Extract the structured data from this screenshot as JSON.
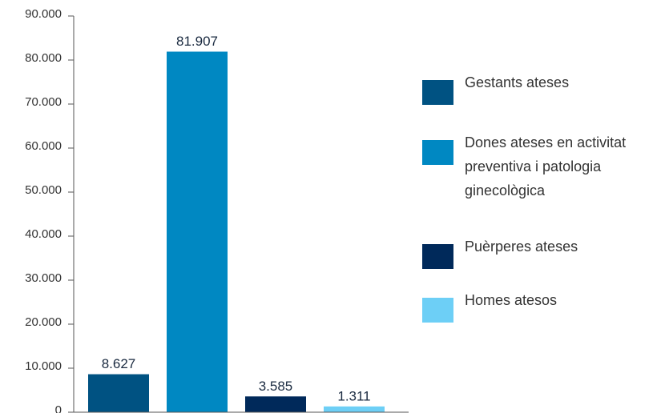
{
  "chart_data": {
    "type": "bar",
    "categories": [
      "Gestants ateses",
      "Dones ateses en activitat preventiva i patologia ginecològica",
      "Puèrperes ateses",
      "Homes atesos"
    ],
    "values": [
      8627,
      81907,
      3585,
      1311
    ],
    "value_labels": [
      "8.627",
      "81.907",
      "3.585",
      "1.311"
    ],
    "colors": [
      "#005282",
      "#0088c2",
      "#00295a",
      "#6dcff6"
    ],
    "ylim": [
      0,
      90000
    ],
    "yticks": [
      0,
      {
        "value": 10000,
        "label": "10.000"
      },
      {
        "value": 20000,
        "label": "20.000"
      },
      {
        "value": 30000,
        "label": "30.000"
      },
      {
        "value": 40000,
        "label": "40.000"
      },
      {
        "value": 50000,
        "label": "50.000"
      },
      {
        "value": 60000,
        "label": "60.000"
      },
      {
        "value": 70000,
        "label": "70.000"
      },
      {
        "value": 80000,
        "label": "80.000"
      },
      {
        "value": 90000,
        "label": "90.000"
      }
    ],
    "legend": "right"
  }
}
